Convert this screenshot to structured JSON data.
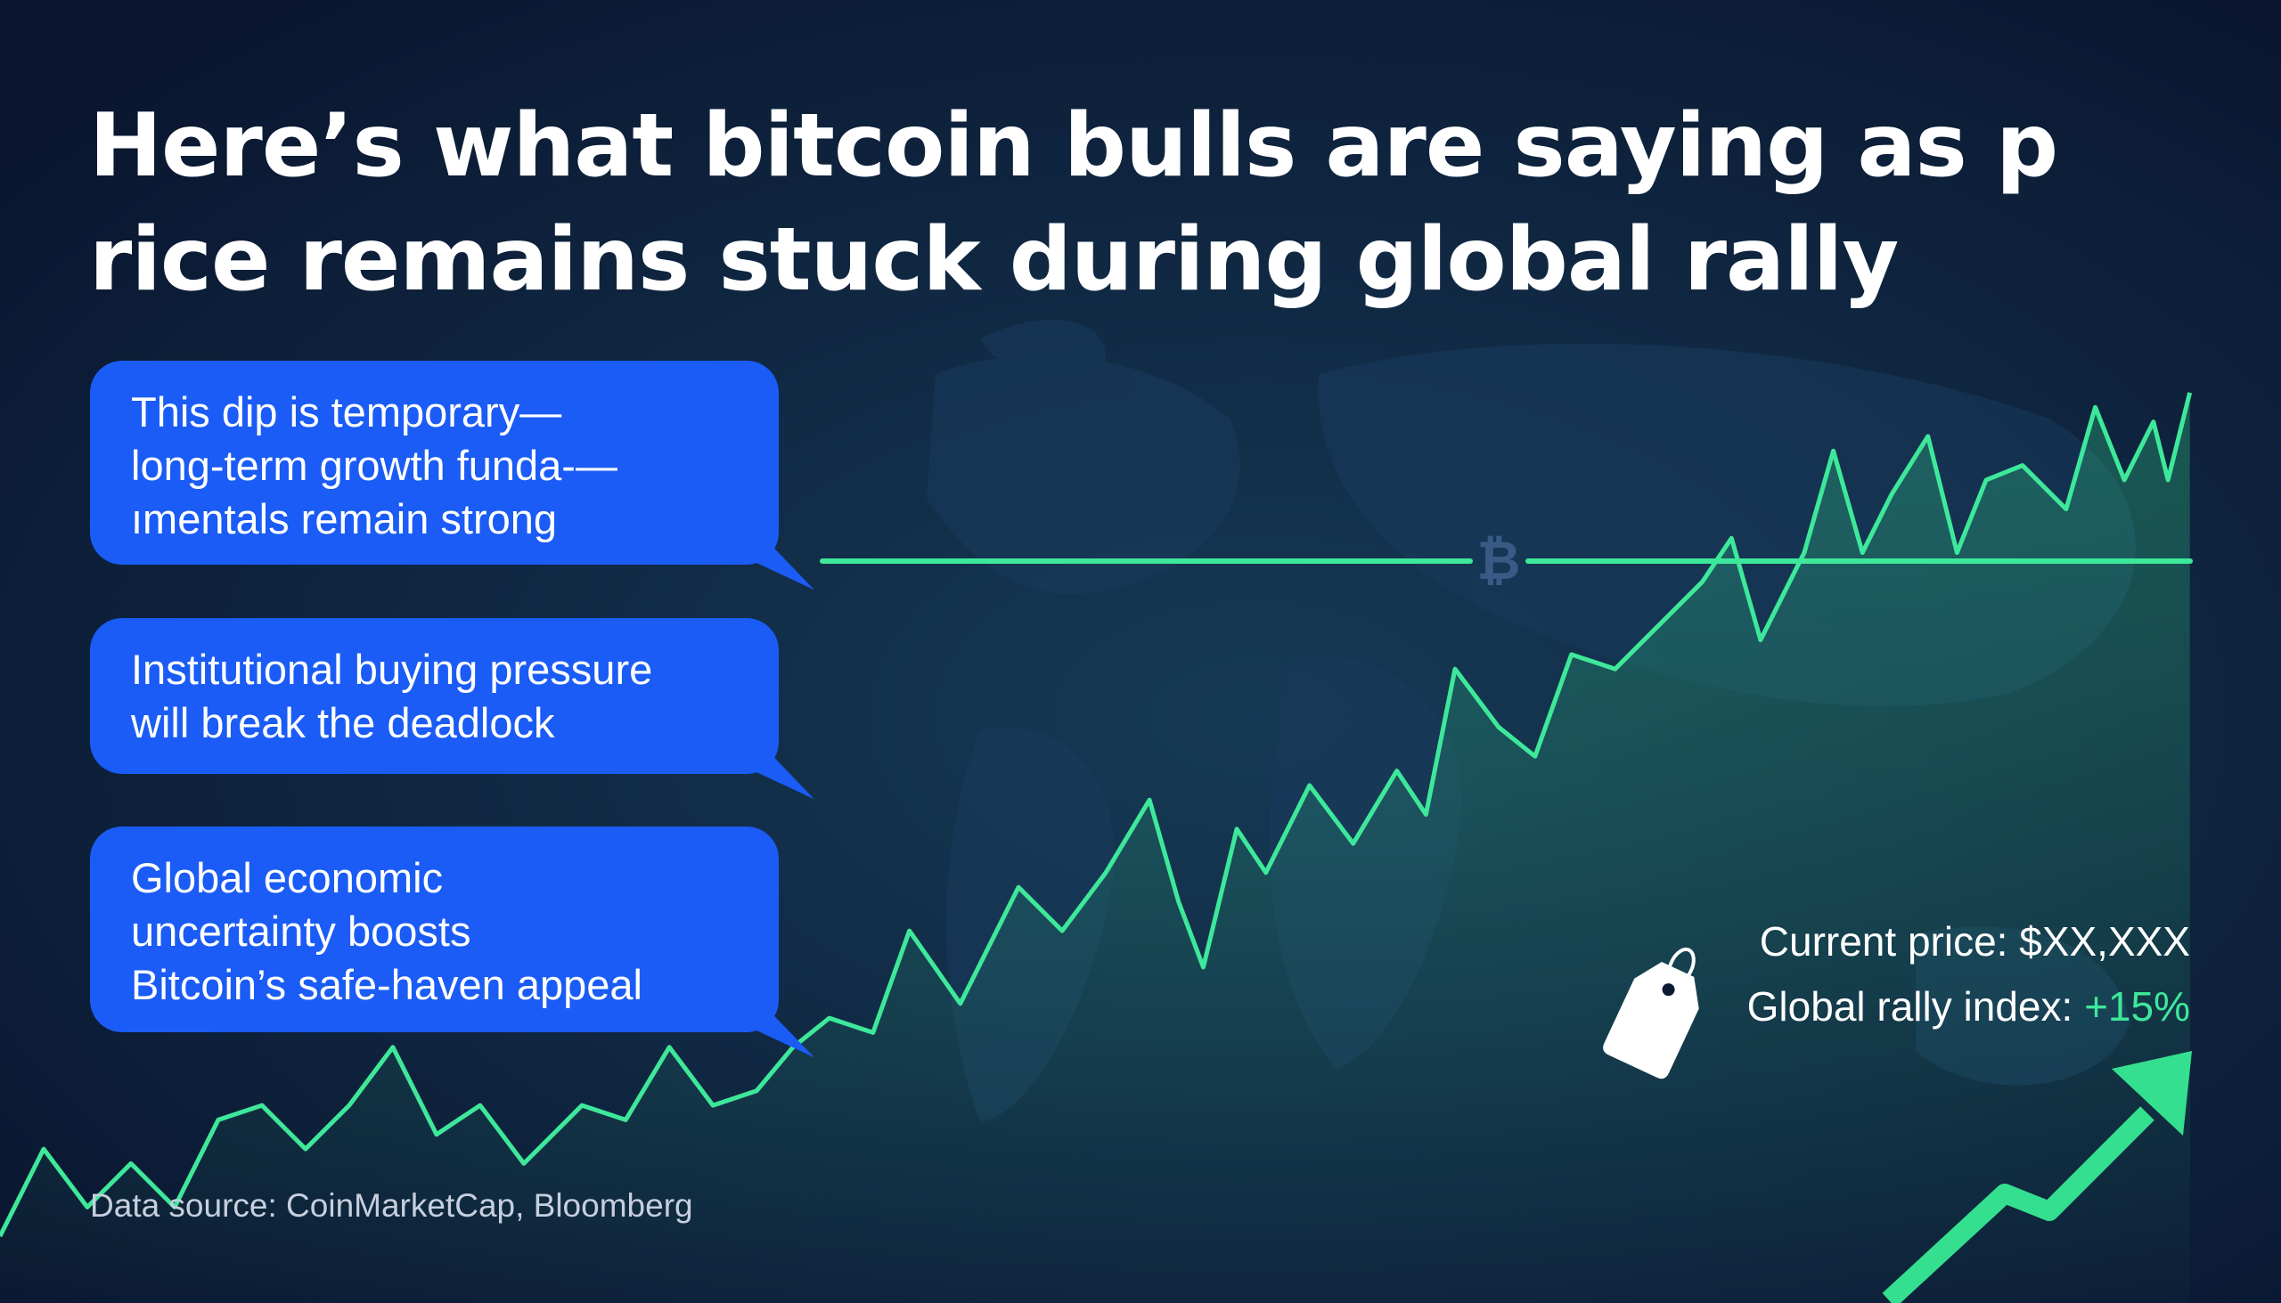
{
  "headline": {
    "line1": "Here’s what bitcoin bulls are saying as p",
    "line2": "rice remains stuck during global rally"
  },
  "bubbles": [
    {
      "lines": [
        "This dip is temporary—",
        "long-term growth funda-—",
        "ımentals remain strong"
      ]
    },
    {
      "lines": [
        "Institutional buying pressure",
        "will break the deadlock"
      ]
    },
    {
      "lines": [
        "Global economic",
        "uncertainty boosts",
        "Bitcoin’s safe-haven appeal"
      ]
    }
  ],
  "stats": {
    "price_label": "Current price:",
    "price_value": "$XX,XXX",
    "rally_label": "Global rally index:",
    "rally_value": "+15%"
  },
  "source": "Data source: CoinMarketCap, Bloomberg",
  "icons": [
    "bitcoin-icon",
    "price-tag-icon",
    "up-arrow-icon"
  ],
  "colors": {
    "background": "#0b1a33",
    "bubble": "#1a5cf5",
    "line": "#3ee89a"
  }
}
